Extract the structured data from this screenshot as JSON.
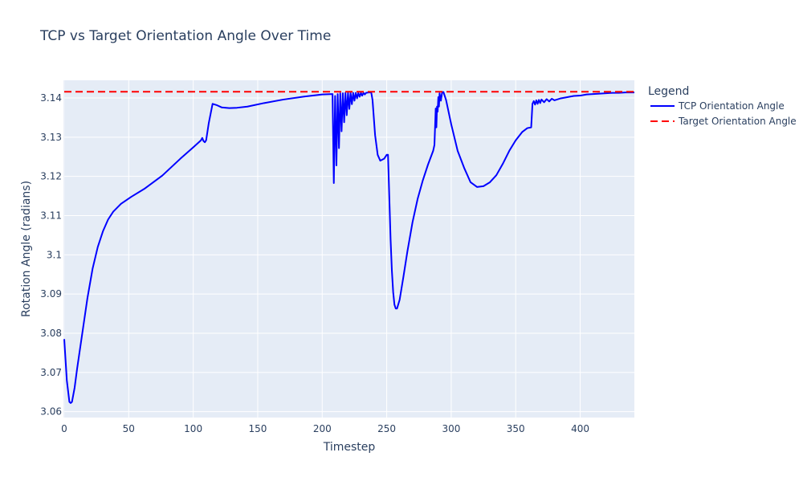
{
  "chart_data": {
    "type": "line",
    "title": "TCP vs Target Orientation Angle Over Time",
    "xlabel": "Timestep",
    "ylabel": "Rotation Angle (radians)",
    "xlim": [
      0,
      442
    ],
    "ylim": [
      3.0585,
      3.1445
    ],
    "grid": true,
    "legend": {
      "title": "Legend",
      "placement": "top-right, outside plot"
    },
    "x_ticks": [
      0,
      50,
      100,
      150,
      200,
      250,
      300,
      350,
      400
    ],
    "x_tick_labels": [
      "0",
      "50",
      "100",
      "150",
      "200",
      "250",
      "300",
      "350",
      "400"
    ],
    "y_ticks": [
      3.06,
      3.07,
      3.08,
      3.09,
      3.1,
      3.11,
      3.12,
      3.13,
      3.14
    ],
    "y_tick_labels": [
      "3.06",
      "3.07",
      "3.08",
      "3.09",
      "3.1",
      "3.11",
      "3.12",
      "3.13",
      "3.14"
    ],
    "series": [
      {
        "name": "TCP Orientation Angle",
        "color": "#0000ff",
        "dash": "solid",
        "x": [
          0,
          2,
          4,
          5,
          6,
          8,
          10,
          14,
          18,
          22,
          26,
          30,
          34,
          38,
          44,
          52,
          62,
          76,
          90,
          100,
          106,
          107,
          108,
          109,
          110,
          112,
          115,
          118,
          122,
          128,
          134,
          142,
          155,
          170,
          185,
          200,
          208,
          209,
          210,
          211,
          212,
          213,
          214,
          215,
          216,
          217,
          218,
          219,
          220,
          221,
          222,
          223,
          224,
          225,
          226,
          227,
          228,
          229,
          230,
          231,
          232,
          233,
          234,
          236,
          238,
          239,
          241,
          243,
          245,
          248,
          250,
          251,
          252,
          253,
          254,
          255,
          256,
          257,
          258,
          260,
          263,
          266,
          270,
          274,
          278,
          282,
          286,
          287,
          288,
          288.5,
          289,
          289.5,
          290,
          290.5,
          291,
          292,
          293,
          294,
          296,
          300,
          305,
          310,
          315,
          320,
          325,
          330,
          335,
          340,
          345,
          350,
          355,
          359,
          362,
          363,
          364,
          365,
          366,
          367,
          368,
          369,
          370,
          372,
          374,
          376,
          378,
          380,
          385,
          390,
          395,
          400,
          405,
          410,
          415,
          420,
          425,
          430,
          435,
          440,
          442
        ],
        "y": [
          3.0785,
          3.068,
          3.0625,
          3.0622,
          3.0625,
          3.066,
          3.071,
          3.08,
          3.089,
          3.0965,
          3.102,
          3.106,
          3.109,
          3.111,
          3.113,
          3.1148,
          3.1168,
          3.1202,
          3.1245,
          3.1274,
          3.1292,
          3.1298,
          3.129,
          3.1287,
          3.1292,
          3.1335,
          3.1385,
          3.1382,
          3.1376,
          3.1374,
          3.1375,
          3.1378,
          3.1387,
          3.1396,
          3.1403,
          3.1409,
          3.141,
          3.1183,
          3.1405,
          3.1228,
          3.141,
          3.1272,
          3.1412,
          3.1315,
          3.1412,
          3.1338,
          3.1413,
          3.1356,
          3.1413,
          3.1372,
          3.1413,
          3.1384,
          3.1413,
          3.1393,
          3.1413,
          3.1399,
          3.1413,
          3.1403,
          3.1413,
          3.1406,
          3.1413,
          3.1409,
          3.1413,
          3.1414,
          3.1414,
          3.1395,
          3.1305,
          3.1255,
          3.124,
          3.1245,
          3.1255,
          3.1255,
          3.1148,
          3.104,
          3.096,
          3.0905,
          3.0873,
          3.0863,
          3.0863,
          3.0885,
          3.0945,
          3.1008,
          3.1083,
          3.1143,
          3.119,
          3.123,
          3.1265,
          3.128,
          3.1373,
          3.1325,
          3.1378,
          3.1365,
          3.1402,
          3.1378,
          3.1412,
          3.1393,
          3.1415,
          3.1415,
          3.1395,
          3.1333,
          3.1265,
          3.1222,
          3.1185,
          3.1173,
          3.1175,
          3.1185,
          3.1203,
          3.1232,
          3.1265,
          3.1292,
          3.1313,
          3.1323,
          3.1325,
          3.1385,
          3.1392,
          3.1383,
          3.1394,
          3.1385,
          3.1395,
          3.1387,
          3.1396,
          3.1389,
          3.1397,
          3.1391,
          3.1398,
          3.1394,
          3.1399,
          3.1402,
          3.1405,
          3.1406,
          3.1409,
          3.141,
          3.1411,
          3.1412,
          3.1413,
          3.1413,
          3.1414,
          3.1414,
          3.1414
        ]
      },
      {
        "name": "Target Orientation Angle",
        "color": "#ff0000",
        "dash": "dashed",
        "x": [
          0,
          442
        ],
        "y": [
          3.14159,
          3.14159
        ]
      }
    ]
  }
}
